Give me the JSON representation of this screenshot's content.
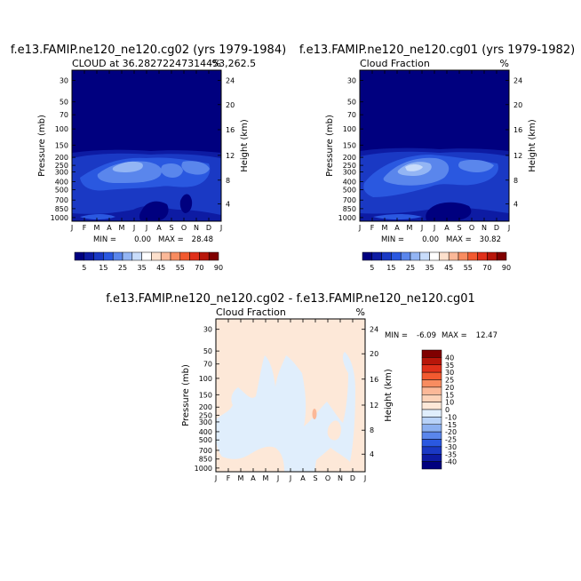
{
  "chart_data": [
    {
      "type": "heatmap",
      "title": "f.e13.FAMIP.ne120_ne120.cg02 (yrs 1979-1984)",
      "subtitle_left": "CLOUD at 36.28272247314453,262.5",
      "subtitle_right": "%",
      "xlabel": "",
      "ylabel": "Pressure (mb)",
      "y2label": "Height (km)",
      "x_ticks": [
        "J",
        "F",
        "M",
        "A",
        "M",
        "J",
        "J",
        "A",
        "S",
        "O",
        "N",
        "D",
        "J"
      ],
      "y_ticks": [
        "30",
        "50",
        "70",
        "100",
        "150",
        "200",
        "250",
        "300",
        "400",
        "500",
        "700",
        "850",
        "1000"
      ],
      "y2_ticks": [
        "24",
        "20",
        "16",
        "12",
        "8",
        "4"
      ],
      "min_label": "MIN =",
      "min_value": "0.00",
      "max_label": "MAX =",
      "max_value": "28.48",
      "colorbar": {
        "orientation": "horizontal",
        "labels": [
          "5",
          "15",
          "25",
          "35",
          "45",
          "55",
          "70",
          "90"
        ],
        "colors": [
          "#00007f",
          "#0d1ba3",
          "#1a39c4",
          "#2a58e0",
          "#5a86ec",
          "#93b5f4",
          "#c8dcfa",
          "#ffffff",
          "#fde0cc",
          "#fbb898",
          "#f88c60",
          "#f25a30",
          "#e0301a",
          "#b8160a",
          "#800000"
        ]
      }
    },
    {
      "type": "heatmap",
      "title": "f.e13.FAMIP.ne120_ne120.cg01 (yrs 1979-1982)",
      "subtitle_left": "Cloud Fraction",
      "subtitle_right": "%",
      "xlabel": "",
      "ylabel": "Pressure (mb)",
      "y2label": "Height (km)",
      "x_ticks": [
        "J",
        "F",
        "M",
        "A",
        "M",
        "J",
        "J",
        "A",
        "S",
        "O",
        "N",
        "D",
        "J"
      ],
      "y_ticks": [
        "30",
        "50",
        "70",
        "100",
        "150",
        "200",
        "250",
        "300",
        "400",
        "500",
        "700",
        "850",
        "1000"
      ],
      "y2_ticks": [
        "24",
        "20",
        "16",
        "12",
        "8",
        "4"
      ],
      "min_label": "MIN =",
      "min_value": "0.00",
      "max_label": "MAX =",
      "max_value": "30.82",
      "colorbar": {
        "orientation": "horizontal",
        "labels": [
          "5",
          "15",
          "25",
          "35",
          "45",
          "55",
          "70",
          "90"
        ],
        "colors": [
          "#00007f",
          "#0d1ba3",
          "#1a39c4",
          "#2a58e0",
          "#5a86ec",
          "#93b5f4",
          "#c8dcfa",
          "#ffffff",
          "#fde0cc",
          "#fbb898",
          "#f88c60",
          "#f25a30",
          "#e0301a",
          "#b8160a",
          "#800000"
        ]
      }
    },
    {
      "type": "heatmap",
      "title": "f.e13.FAMIP.ne120_ne120.cg02 - f.e13.FAMIP.ne120_ne120.cg01",
      "subtitle_left": "Cloud Fraction",
      "subtitle_right": "%",
      "xlabel": "",
      "ylabel": "Pressure (mb)",
      "y2label": "Height (km)",
      "x_ticks": [
        "J",
        "F",
        "M",
        "A",
        "M",
        "J",
        "J",
        "A",
        "S",
        "O",
        "N",
        "D",
        "J"
      ],
      "y_ticks": [
        "30",
        "50",
        "70",
        "100",
        "150",
        "200",
        "250",
        "300",
        "400",
        "500",
        "700",
        "850",
        "1000"
      ],
      "y2_ticks": [
        "24",
        "20",
        "16",
        "12",
        "8",
        "4"
      ],
      "min_label": "MIN =",
      "min_value": "-6.09",
      "max_label": "MAX =",
      "max_value": "12.47",
      "colorbar": {
        "orientation": "vertical",
        "labels": [
          "40",
          "35",
          "30",
          "25",
          "20",
          "15",
          "10",
          "0",
          "-10",
          "-15",
          "-20",
          "-25",
          "-30",
          "-35",
          "-40"
        ],
        "colors": [
          "#800000",
          "#b8160a",
          "#e0301a",
          "#f25a30",
          "#f88c60",
          "#fbb898",
          "#fcd2b8",
          "#fde8d8",
          "#e0eefc",
          "#b8d2f8",
          "#8cb0f0",
          "#5a86ec",
          "#2a58e0",
          "#1a39c4",
          "#0d1ba3",
          "#00007f"
        ]
      }
    }
  ]
}
